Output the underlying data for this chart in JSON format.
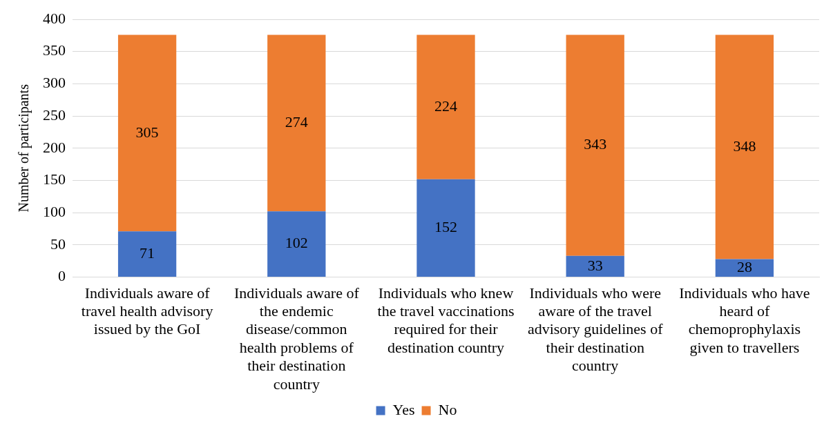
{
  "chart_data": {
    "type": "bar",
    "stacked": true,
    "ylabel": "Number of participants",
    "categories": [
      "Individuals aware of travel health advisory issued by the GoI",
      "Individuals aware of the endemic disease/common health problems of their destination country",
      "Individuals who knew the travel vaccinations required for their destination country",
      "Individuals who were aware of the travel advisory guidelines of their destination country",
      "Individuals who have heard of chemoprophylaxis given to travellers"
    ],
    "series": [
      {
        "name": "Yes",
        "color": "#4472c4",
        "values": [
          71,
          102,
          152,
          33,
          28
        ]
      },
      {
        "name": "No",
        "color": "#ed7d31",
        "values": [
          305,
          274,
          224,
          343,
          348
        ]
      }
    ],
    "ylim": [
      0,
      400
    ],
    "yticks": [
      0,
      50,
      100,
      150,
      200,
      250,
      300,
      350,
      400
    ],
    "grid": "y",
    "legend": "bottom",
    "data_labels": true
  }
}
